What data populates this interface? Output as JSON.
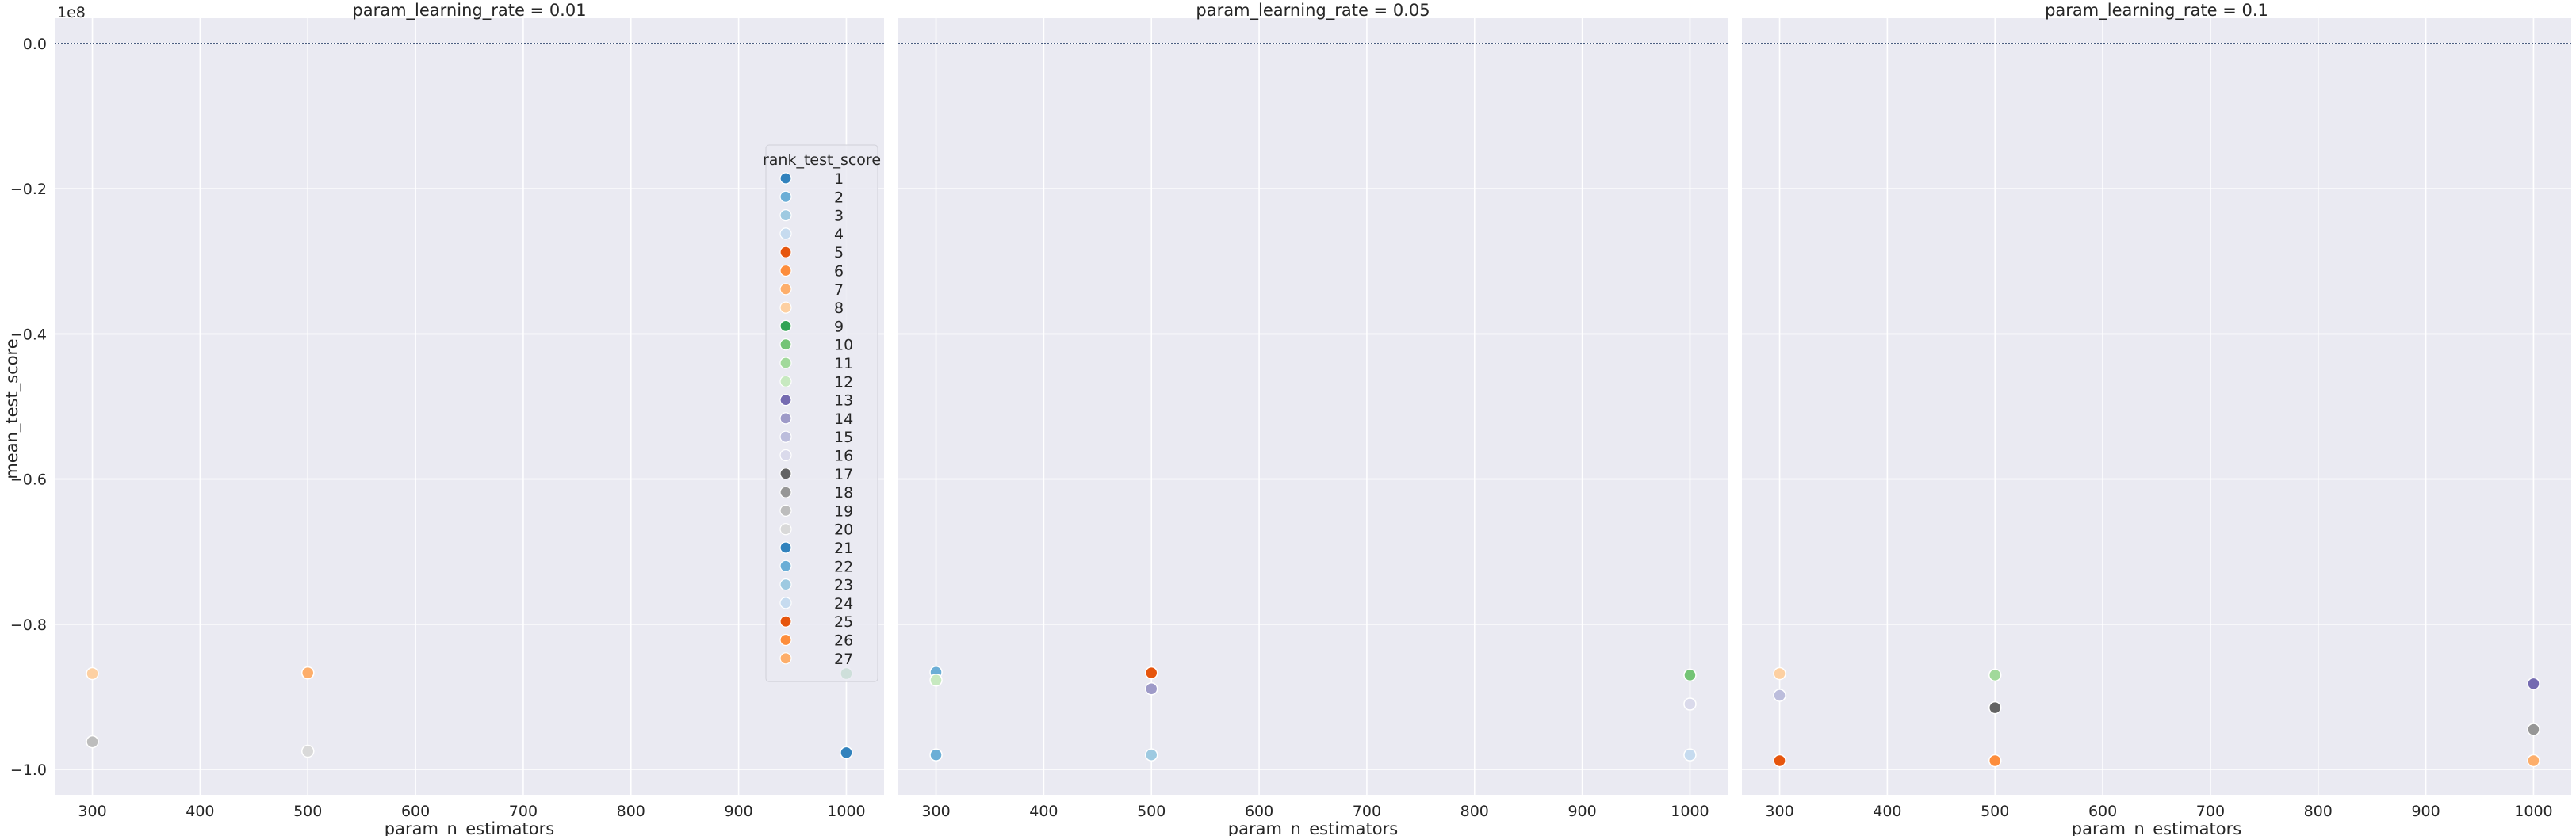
{
  "chart_data": {
    "type": "scatter",
    "xlabel": "param_n_estimators",
    "ylabel": "mean_test_score",
    "y_offset_label": "1e8",
    "y_multiplier": 100000000,
    "xlim": [
      265,
      1035
    ],
    "ylim": [
      -1.035,
      0.035
    ],
    "xticks": [
      300,
      400,
      500,
      600,
      700,
      800,
      900,
      1000
    ],
    "yticks": [
      0.0,
      -0.2,
      -0.4,
      -0.6,
      -0.8,
      -1.0
    ],
    "ytick_labels": [
      "0.0",
      "−0.2",
      "−0.4",
      "−0.6",
      "−0.8",
      "−1.0"
    ],
    "reference_line_y": 0.0,
    "grid": true,
    "legend": {
      "title": "rank_test_score",
      "placement": "right-of-first-panel",
      "entries": [
        {
          "label": "1",
          "color": "#3182bd"
        },
        {
          "label": "2",
          "color": "#6baed6"
        },
        {
          "label": "3",
          "color": "#9ecae1"
        },
        {
          "label": "4",
          "color": "#c6dbef"
        },
        {
          "label": "5",
          "color": "#e6550d"
        },
        {
          "label": "6",
          "color": "#fd8d3c"
        },
        {
          "label": "7",
          "color": "#fdae6b"
        },
        {
          "label": "8",
          "color": "#fdd0a2"
        },
        {
          "label": "9",
          "color": "#31a354"
        },
        {
          "label": "10",
          "color": "#74c476"
        },
        {
          "label": "11",
          "color": "#a1d99b"
        },
        {
          "label": "12",
          "color": "#c7e9c0"
        },
        {
          "label": "13",
          "color": "#756bb1"
        },
        {
          "label": "14",
          "color": "#9e9ac8"
        },
        {
          "label": "15",
          "color": "#bcbddc"
        },
        {
          "label": "16",
          "color": "#dadaeb"
        },
        {
          "label": "17",
          "color": "#636363"
        },
        {
          "label": "18",
          "color": "#969696"
        },
        {
          "label": "19",
          "color": "#bdbdbd"
        },
        {
          "label": "20",
          "color": "#d9d9d9"
        },
        {
          "label": "21",
          "color": "#3182bd"
        },
        {
          "label": "22",
          "color": "#6baed6"
        },
        {
          "label": "23",
          "color": "#9ecae1"
        },
        {
          "label": "24",
          "color": "#c6dbef"
        },
        {
          "label": "25",
          "color": "#e6550d"
        },
        {
          "label": "26",
          "color": "#fd8d3c"
        },
        {
          "label": "27",
          "color": "#fdae6b"
        }
      ]
    },
    "panels": [
      {
        "title": "param_learning_rate = 0.01",
        "points": [
          {
            "x": 300,
            "y": -0.868,
            "rank": 8
          },
          {
            "x": 300,
            "y": -0.962,
            "rank": 19
          },
          {
            "x": 500,
            "y": -0.867,
            "rank": 26
          },
          {
            "x": 500,
            "y": -0.867,
            "rank": 7
          },
          {
            "x": 500,
            "y": -0.975,
            "rank": 20
          },
          {
            "x": 1000,
            "y": -0.868,
            "rank": 9
          },
          {
            "x": 1000,
            "y": -0.977,
            "rank": 1
          }
        ]
      },
      {
        "title": "param_learning_rate = 0.05",
        "points": [
          {
            "x": 300,
            "y": -0.866,
            "rank": 22
          },
          {
            "x": 300,
            "y": -0.877,
            "rank": 12
          },
          {
            "x": 300,
            "y": -0.98,
            "rank": 2
          },
          {
            "x": 500,
            "y": -0.867,
            "rank": 5
          },
          {
            "x": 500,
            "y": -0.889,
            "rank": 14
          },
          {
            "x": 500,
            "y": -0.98,
            "rank": 3
          },
          {
            "x": 1000,
            "y": -0.87,
            "rank": 10
          },
          {
            "x": 1000,
            "y": -0.91,
            "rank": 16
          },
          {
            "x": 1000,
            "y": -0.98,
            "rank": 24
          }
        ]
      },
      {
        "title": "param_learning_rate = 0.1",
        "points": [
          {
            "x": 300,
            "y": -0.868,
            "rank": 8
          },
          {
            "x": 300,
            "y": -0.898,
            "rank": 15
          },
          {
            "x": 300,
            "y": -0.988,
            "rank": 25
          },
          {
            "x": 500,
            "y": -0.87,
            "rank": 11
          },
          {
            "x": 500,
            "y": -0.915,
            "rank": 17
          },
          {
            "x": 500,
            "y": -0.988,
            "rank": 6
          },
          {
            "x": 1000,
            "y": -0.882,
            "rank": 13
          },
          {
            "x": 1000,
            "y": -0.945,
            "rank": 18
          },
          {
            "x": 1000,
            "y": -0.988,
            "rank": 27
          }
        ]
      }
    ]
  }
}
